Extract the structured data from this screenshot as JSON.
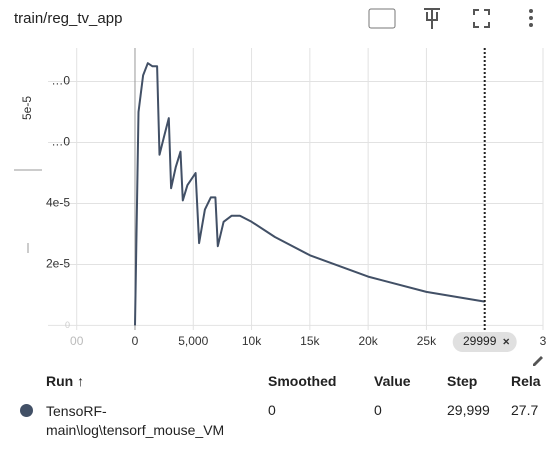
{
  "chart_data": {
    "type": "line",
    "title": "train/reg_tv_app",
    "annotations": [
      "5e-5"
    ],
    "x": [
      0,
      300,
      700,
      1100,
      1500,
      1900,
      2100,
      2500,
      2900,
      3100,
      3500,
      3900,
      4100,
      4500,
      5200,
      5500,
      6000,
      6500,
      6900,
      7100,
      7600,
      8300,
      9000,
      10000,
      12000,
      15000,
      20000,
      25000,
      29999
    ],
    "series": [
      {
        "name": "TensoRF-main\\log\\tensorf_mouse_VM",
        "color": "#425066",
        "values": [
          0,
          7e-05,
          8.2e-05,
          8.6e-05,
          8.5e-05,
          8.5e-05,
          5.6e-05,
          6.2e-05,
          6.8e-05,
          4.5e-05,
          5.2e-05,
          5.7e-05,
          4.1e-05,
          4.6e-05,
          5e-05,
          2.7e-05,
          3.8e-05,
          4.2e-05,
          4.2e-05,
          2.6e-05,
          3.4e-05,
          3.6e-05,
          3.6e-05,
          3.4e-05,
          2.9e-05,
          2.3e-05,
          1.6e-05,
          1.1e-05,
          7.8e-06
        ]
      }
    ],
    "xlim": [
      -5000,
      35000
    ],
    "ylim": [
      -1.5e-06,
      9.1e-05
    ],
    "xticks": [
      {
        "value": -5000,
        "label": "00"
      },
      0,
      {
        "value": 5000,
        "label": "5,000"
      },
      {
        "value": 10000,
        "label": "10k"
      },
      {
        "value": 15000,
        "label": "15k"
      },
      {
        "value": 20000,
        "label": "20k"
      },
      {
        "value": 25000,
        "label": "25k"
      },
      {
        "value": 35000,
        "label": "3"
      }
    ],
    "yticks": [
      0,
      {
        "value": 2e-05,
        "label": "2e-5"
      },
      {
        "value": 4e-05,
        "label": "4e-5"
      },
      {
        "value": 6e-05,
        "label": "…0"
      },
      {
        "value": 8e-05,
        "label": "…0"
      }
    ],
    "grid": true,
    "cursor_step": 29999
  },
  "table": {
    "columns": [
      "Run ↑",
      "Smoothed",
      "Value",
      "Step",
      "Rela"
    ],
    "rows": [
      [
        "TensoRF-main\\log\\tensorf_mouse_VM",
        "0",
        "0",
        "29,999",
        "27.7"
      ]
    ]
  }
}
